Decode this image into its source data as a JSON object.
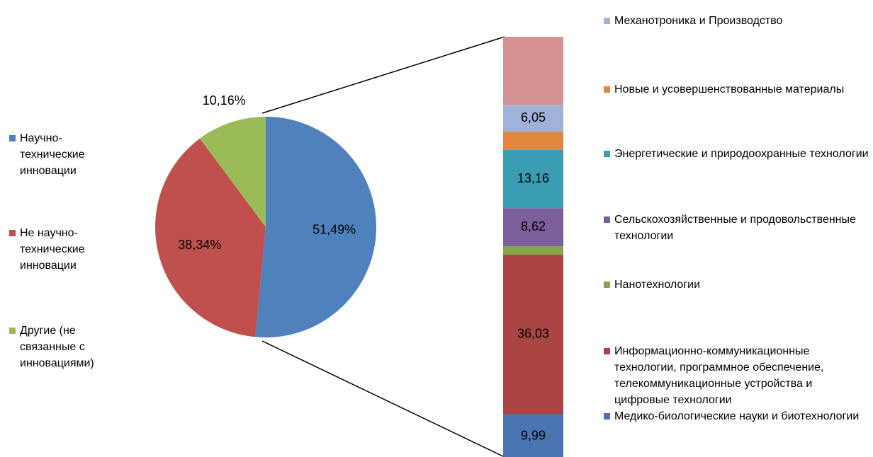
{
  "chart_data": [
    {
      "type": "pie",
      "categories": [
        "Научно-технические инновации",
        "Не научно-технические инновации",
        "Другие (не связанные с инновациями)"
      ],
      "values": [
        51.49,
        38.34,
        10.16
      ],
      "value_labels": [
        "51,49%",
        "38,34%",
        "10,16%"
      ],
      "colors": [
        "#4f81bd",
        "#c0504d",
        "#9bbb59"
      ]
    },
    {
      "type": "stacked_bar",
      "series": [
        {
          "name": "Медико-биологические науки и биотехнологии",
          "color": "#4a74b2",
          "values": [
            9.99
          ],
          "value_labels": [
            "9,99"
          ]
        },
        {
          "name": "Информационно-коммуникационные технологии, программное обеспечение, телекоммуникационные устройства и цифровые технологии",
          "color": "#ab4543",
          "values": [
            36.03
          ],
          "value_labels": [
            "36,03"
          ]
        },
        {
          "name": "Нанотехнологии",
          "color": "#84a54b",
          "values": [
            1.9
          ]
        },
        {
          "name": "Сельскохозяйственные и продовольственные технологии",
          "color": "#7b5f9b",
          "values": [
            8.62
          ],
          "value_labels": [
            "8,62"
          ]
        },
        {
          "name": "Энергетические и природоохранные технологии",
          "color": "#3a9db4",
          "values": [
            13.16
          ],
          "value_labels": [
            "13,16"
          ]
        },
        {
          "name": "Новые и усовершенствованные материалы",
          "color": "#e0863e",
          "values": [
            4.1
          ]
        },
        {
          "name": "Механотроника и Производство",
          "color": "#9fb2da",
          "values": [
            6.05
          ],
          "value_labels": [
            "6,05"
          ]
        },
        {
          "name": null,
          "color": "#d49292",
          "values": [
            15.4
          ]
        }
      ]
    }
  ]
}
